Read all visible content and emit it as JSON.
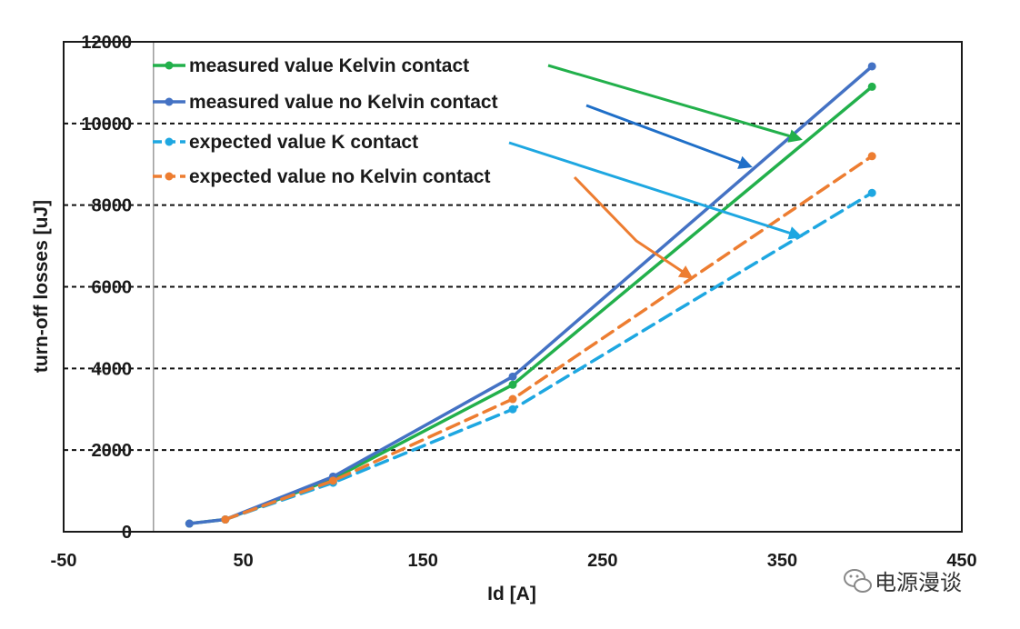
{
  "chart_data": {
    "type": "line",
    "xlabel": "Id [A]",
    "ylabel": "turn-off losses [uJ]",
    "xlim": [
      -50,
      450
    ],
    "ylim": [
      0,
      12000
    ],
    "x_ticks": [
      "-50",
      "50",
      "150",
      "250",
      "350",
      "450"
    ],
    "y_ticks": [
      "0",
      "2000",
      "4000",
      "6000",
      "8000",
      "10000",
      "12000"
    ],
    "grid": "horizontal dashed",
    "legend_position": "top-left",
    "series": [
      {
        "name": "measured value Kelvin contact",
        "color": "#22b04b",
        "dash": false,
        "x": [
          20,
          40,
          100,
          200,
          400
        ],
        "y": [
          200,
          300,
          1300,
          3600,
          10900
        ]
      },
      {
        "name": "measured value no Kelvin contact",
        "color": "#4472c4",
        "dash": false,
        "x": [
          20,
          40,
          100,
          200,
          400
        ],
        "y": [
          200,
          300,
          1350,
          3800,
          11400
        ]
      },
      {
        "name": "expected value K contact",
        "color": "#1ea7e1",
        "dash": true,
        "x": [
          40,
          100,
          200,
          400
        ],
        "y": [
          300,
          1200,
          3000,
          8300
        ]
      },
      {
        "name": "expected value no Kelvin contact",
        "color": "#ed7d31",
        "dash": true,
        "x": [
          40,
          100,
          200,
          400
        ],
        "y": [
          300,
          1250,
          3250,
          9200
        ]
      }
    ]
  },
  "watermark": {
    "text": "电源漫谈",
    "icon": "wechat-icon"
  }
}
